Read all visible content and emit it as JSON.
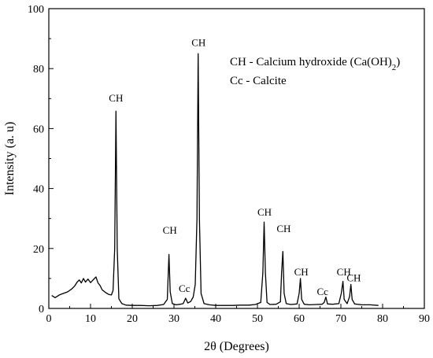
{
  "chart_data": {
    "type": "line",
    "title": "",
    "xlabel": "2θ (Degrees)",
    "ylabel": "Intensity (a. u)",
    "xlim": [
      0,
      90
    ],
    "ylim": [
      0,
      100
    ],
    "xticks": [
      0,
      10,
      20,
      30,
      40,
      50,
      60,
      70,
      80,
      90
    ],
    "yticks": [
      0,
      20,
      40,
      60,
      80,
      100
    ],
    "grid": false,
    "legend": {
      "placement": "top-right",
      "lines": [
        {
          "prefix": "CH - Calcium hydroxide (Ca(OH)",
          "sub": "2",
          "suffix": ")"
        },
        {
          "prefix": "Cc  - Calcite",
          "sub": "",
          "suffix": ""
        }
      ]
    },
    "series": [
      {
        "color": "#000000",
        "points": [
          [
            0.7,
            4.3
          ],
          [
            1.5,
            3.6
          ],
          [
            2.5,
            4.5
          ],
          [
            3.5,
            5.0
          ],
          [
            4.5,
            5.5
          ],
          [
            5.5,
            6.5
          ],
          [
            6.2,
            7.5
          ],
          [
            6.8,
            8.8
          ],
          [
            7.3,
            9.5
          ],
          [
            7.8,
            8.5
          ],
          [
            8.3,
            10.0
          ],
          [
            8.8,
            8.8
          ],
          [
            9.4,
            9.8
          ],
          [
            10.0,
            8.6
          ],
          [
            10.6,
            9.5
          ],
          [
            11.3,
            10.5
          ],
          [
            11.8,
            8.5
          ],
          [
            12.3,
            7.6
          ],
          [
            12.8,
            6.2
          ],
          [
            13.5,
            5.4
          ],
          [
            14.3,
            4.7
          ],
          [
            15.0,
            4.5
          ],
          [
            15.4,
            6.0
          ],
          [
            15.8,
            20.0
          ],
          [
            16.1,
            65.8
          ],
          [
            16.4,
            20.0
          ],
          [
            16.8,
            3.2
          ],
          [
            17.5,
            1.6
          ],
          [
            18.5,
            1.1
          ],
          [
            20.0,
            1.0
          ],
          [
            22.0,
            1.0
          ],
          [
            24.0,
            0.9
          ],
          [
            26.0,
            1.0
          ],
          [
            27.5,
            1.3
          ],
          [
            28.4,
            3.0
          ],
          [
            28.8,
            18.0
          ],
          [
            29.1,
            5.5
          ],
          [
            29.6,
            1.6
          ],
          [
            30.5,
            1.2
          ],
          [
            31.5,
            1.4
          ],
          [
            32.2,
            1.6
          ],
          [
            32.8,
            3.4
          ],
          [
            33.3,
            1.8
          ],
          [
            34.0,
            2.3
          ],
          [
            34.6,
            3.8
          ],
          [
            35.1,
            8.0
          ],
          [
            35.5,
            30.0
          ],
          [
            35.8,
            85.0
          ],
          [
            36.1,
            30.0
          ],
          [
            36.5,
            5.0
          ],
          [
            37.2,
            1.6
          ],
          [
            38.5,
            1.2
          ],
          [
            40.0,
            1.0
          ],
          [
            42.0,
            1.0
          ],
          [
            44.0,
            1.0
          ],
          [
            46.0,
            1.1
          ],
          [
            48.0,
            1.1
          ],
          [
            49.5,
            1.3
          ],
          [
            50.8,
            2.0
          ],
          [
            51.3,
            12.0
          ],
          [
            51.6,
            28.8
          ],
          [
            51.9,
            12.0
          ],
          [
            52.3,
            2.0
          ],
          [
            53.0,
            1.3
          ],
          [
            54.5,
            1.4
          ],
          [
            55.5,
            2.2
          ],
          [
            55.8,
            12.0
          ],
          [
            56.1,
            19.0
          ],
          [
            56.4,
            5.0
          ],
          [
            56.9,
            1.6
          ],
          [
            58.0,
            1.3
          ],
          [
            59.5,
            1.5
          ],
          [
            60.0,
            5.0
          ],
          [
            60.3,
            10.0
          ],
          [
            60.6,
            3.0
          ],
          [
            61.2,
            1.4
          ],
          [
            62.5,
            1.2
          ],
          [
            64.0,
            1.3
          ],
          [
            65.5,
            1.4
          ],
          [
            66.0,
            2.0
          ],
          [
            66.4,
            3.8
          ],
          [
            66.8,
            1.5
          ],
          [
            68.0,
            1.4
          ],
          [
            69.5,
            1.6
          ],
          [
            70.1,
            5.0
          ],
          [
            70.5,
            9.0
          ],
          [
            70.8,
            3.0
          ],
          [
            71.5,
            1.6
          ],
          [
            72.1,
            4.0
          ],
          [
            72.4,
            8.0
          ],
          [
            72.7,
            3.0
          ],
          [
            73.3,
            1.5
          ],
          [
            75.0,
            1.2
          ],
          [
            77.0,
            1.2
          ],
          [
            79.0,
            1.0
          ]
        ]
      }
    ],
    "annotations": [
      {
        "text": "CH",
        "x": 16.1,
        "y": 69
      },
      {
        "text": "CH",
        "x": 29.0,
        "y": 25
      },
      {
        "text": "Cc",
        "x": 32.5,
        "y": 5.5
      },
      {
        "text": "CH",
        "x": 35.9,
        "y": 87.5
      },
      {
        "text": "CH",
        "x": 51.7,
        "y": 31
      },
      {
        "text": "CH",
        "x": 56.3,
        "y": 25.5
      },
      {
        "text": "CH",
        "x": 60.5,
        "y": 11
      },
      {
        "text": "Cc",
        "x": 65.6,
        "y": 4.5
      },
      {
        "text": "CH",
        "x": 70.7,
        "y": 11
      },
      {
        "text": "CH",
        "x": 73.1,
        "y": 9
      }
    ]
  }
}
